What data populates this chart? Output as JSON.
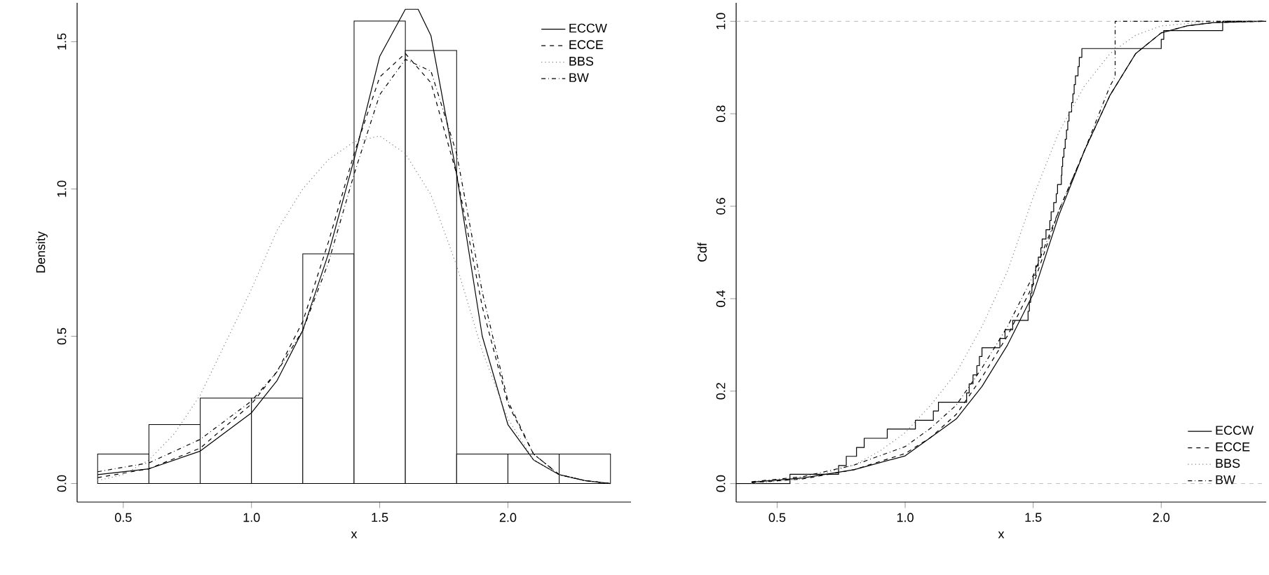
{
  "chart_data": [
    {
      "type": "histogram",
      "xlabel": "x",
      "ylabel": "Density",
      "bins": [
        0.4,
        0.6,
        0.8,
        1.0,
        1.2,
        1.4,
        1.6,
        1.8,
        2.0,
        2.2,
        2.4
      ],
      "values": [
        0.1,
        0.2,
        0.29,
        0.29,
        0.78,
        1.57,
        1.47,
        0.1,
        0.1,
        0.1
      ],
      "xlim": [
        0.32,
        2.48
      ],
      "ylim": [
        -0.063,
        1.632
      ],
      "xticks": [
        {
          "value": 0.5,
          "label": "0.5"
        },
        {
          "value": 1.0,
          "label": "1.0"
        },
        {
          "value": 1.5,
          "label": "1.5"
        },
        {
          "value": 2.0,
          "label": "2.0"
        }
      ],
      "yticks": [
        {
          "value": 0,
          "label": "0.0"
        },
        {
          "value": 0.5,
          "label": "0.5"
        },
        {
          "value": 1.0,
          "label": "1.0"
        },
        {
          "value": 1.5,
          "label": "1.5"
        }
      ],
      "legend": "top right",
      "marker": "none",
      "series": [
        {
          "name": "ECCW",
          "type": "line",
          "color": "#000000",
          "line_style": "solid",
          "x": [
            0.4,
            0.6,
            0.8,
            1.0,
            1.1,
            1.2,
            1.3,
            1.4,
            1.5,
            1.6,
            1.65,
            1.7,
            1.8,
            1.9,
            2.0,
            2.1,
            2.2,
            2.3,
            2.4
          ],
          "values": [
            0.03,
            0.05,
            0.11,
            0.24,
            0.35,
            0.52,
            0.78,
            1.1,
            1.45,
            1.61,
            1.61,
            1.52,
            1.05,
            0.5,
            0.2,
            0.08,
            0.03,
            0.01,
            0.0
          ]
        },
        {
          "name": "ECCE",
          "type": "line",
          "color": "#000000",
          "line_style": "dashed",
          "x": [
            0.4,
            0.6,
            0.8,
            1.0,
            1.1,
            1.2,
            1.3,
            1.4,
            1.5,
            1.6,
            1.7,
            1.8,
            1.9,
            2.0,
            2.1,
            2.2,
            2.3,
            2.4
          ],
          "values": [
            0.02,
            0.05,
            0.12,
            0.27,
            0.38,
            0.55,
            0.82,
            1.12,
            1.38,
            1.46,
            1.36,
            1.05,
            0.6,
            0.27,
            0.1,
            0.03,
            0.01,
            0.0
          ]
        },
        {
          "name": "BBS",
          "type": "line",
          "color": "#808080",
          "line_style": "dotted",
          "x": [
            0.4,
            0.5,
            0.6,
            0.7,
            0.8,
            0.9,
            1.0,
            1.1,
            1.2,
            1.3,
            1.4,
            1.5,
            1.6,
            1.7,
            1.8,
            1.9,
            2.0,
            2.1,
            2.2,
            2.3,
            2.4
          ],
          "values": [
            0.01,
            0.03,
            0.08,
            0.17,
            0.3,
            0.48,
            0.66,
            0.86,
            1.0,
            1.1,
            1.16,
            1.18,
            1.12,
            0.98,
            0.74,
            0.45,
            0.22,
            0.08,
            0.03,
            0.01,
            0.0
          ]
        },
        {
          "name": "BW",
          "type": "line",
          "color": "#000000",
          "line_style": "dashdot",
          "x": [
            0.4,
            0.6,
            0.8,
            1.0,
            1.1,
            1.2,
            1.3,
            1.4,
            1.5,
            1.6,
            1.7,
            1.8,
            1.9,
            2.0,
            2.1,
            2.2,
            2.3,
            2.4
          ],
          "values": [
            0.04,
            0.07,
            0.15,
            0.28,
            0.38,
            0.52,
            0.75,
            1.05,
            1.32,
            1.44,
            1.4,
            1.12,
            0.65,
            0.28,
            0.1,
            0.03,
            0.01,
            0.0
          ]
        }
      ]
    },
    {
      "type": "line",
      "xlabel": "x",
      "ylabel": "Cdf",
      "xlim": [
        0.34,
        2.41
      ],
      "ylim": [
        -0.04,
        1.04
      ],
      "xticks": [
        {
          "value": 0.5,
          "label": "0.5"
        },
        {
          "value": 1.0,
          "label": "1.0"
        },
        {
          "value": 1.5,
          "label": "1.5"
        },
        {
          "value": 2.0,
          "label": "2.0"
        }
      ],
      "yticks": [
        {
          "value": 0,
          "label": "0.0"
        },
        {
          "value": 0.2,
          "label": "0.2"
        },
        {
          "value": 0.4,
          "label": "0.4"
        },
        {
          "value": 0.6,
          "label": "0.6"
        },
        {
          "value": 0.8,
          "label": "0.8"
        },
        {
          "value": 1.0,
          "label": "1.0"
        }
      ],
      "legend": "bottom right",
      "marker": "none",
      "ref_lines": [
        {
          "axis": "y",
          "value": 0,
          "color": "#aaaaaa",
          "line_style": "dashed"
        },
        {
          "axis": "y",
          "value": 1,
          "color": "#aaaaaa",
          "line_style": "dashed"
        }
      ],
      "series": [
        {
          "type": "step",
          "color": "#000000",
          "line_style": "solid",
          "x": [
            0.34,
            0.55,
            0.74,
            0.77,
            0.81,
            0.84,
            0.93,
            1.04,
            1.11,
            1.13,
            1.24,
            1.25,
            1.265,
            1.28,
            1.29,
            1.3,
            1.37,
            1.39,
            1.42,
            1.48,
            1.485,
            1.49,
            1.495,
            1.5,
            1.51,
            1.52,
            1.53,
            1.535,
            1.55,
            1.565,
            1.57,
            1.58,
            1.59,
            1.595,
            1.61,
            1.612,
            1.615,
            1.62,
            1.625,
            1.63,
            1.635,
            1.64,
            1.65,
            1.655,
            1.66,
            1.665,
            1.675,
            1.68,
            1.69,
            2.0,
            2.01,
            2.24,
            2.41
          ],
          "values": [
            0,
            0.02,
            0.039,
            0.059,
            0.078,
            0.098,
            0.118,
            0.137,
            0.157,
            0.176,
            0.196,
            0.216,
            0.235,
            0.255,
            0.275,
            0.294,
            0.314,
            0.333,
            0.353,
            0.373,
            0.392,
            0.412,
            0.431,
            0.451,
            0.471,
            0.49,
            0.51,
            0.529,
            0.549,
            0.569,
            0.588,
            0.608,
            0.627,
            0.647,
            0.667,
            0.686,
            0.706,
            0.725,
            0.745,
            0.765,
            0.784,
            0.804,
            0.824,
            0.843,
            0.863,
            0.882,
            0.902,
            0.922,
            0.941,
            0.961,
            0.98,
            1,
            1
          ]
        },
        {
          "name": "ECCW",
          "type": "line",
          "color": "#000000",
          "line_style": "solid",
          "x": [
            0.4,
            0.6,
            0.8,
            1.0,
            1.1,
            1.2,
            1.3,
            1.4,
            1.5,
            1.6,
            1.7,
            1.8,
            1.9,
            2.0,
            2.1,
            2.2,
            2.4
          ],
          "values": [
            0.003,
            0.012,
            0.03,
            0.06,
            0.1,
            0.14,
            0.21,
            0.3,
            0.41,
            0.58,
            0.72,
            0.84,
            0.93,
            0.975,
            0.99,
            0.997,
            1.0
          ]
        },
        {
          "name": "ECCE",
          "type": "line",
          "color": "#000000",
          "line_style": "dashed",
          "x": [
            0.4,
            0.6,
            0.8,
            1.0,
            1.1,
            1.2,
            1.3,
            1.4,
            1.5,
            1.6,
            1.7,
            1.8,
            1.9,
            2.0,
            2.1,
            2.2,
            2.4
          ],
          "values": [
            0.002,
            0.01,
            0.03,
            0.065,
            0.1,
            0.15,
            0.23,
            0.32,
            0.43,
            0.59,
            0.72,
            0.84,
            0.93,
            0.975,
            0.99,
            0.997,
            1.0
          ]
        },
        {
          "name": "BBS",
          "type": "line",
          "color": "#808080",
          "line_style": "dotted",
          "x": [
            0.4,
            0.6,
            0.8,
            0.9,
            1.0,
            1.1,
            1.2,
            1.3,
            1.4,
            1.5,
            1.6,
            1.7,
            1.8,
            1.9,
            2.0,
            2.2,
            2.4
          ],
          "values": [
            0.0,
            0.01,
            0.04,
            0.07,
            0.11,
            0.17,
            0.24,
            0.34,
            0.46,
            0.62,
            0.76,
            0.86,
            0.93,
            0.97,
            0.99,
            1.0,
            1.0
          ]
        },
        {
          "name": "BW",
          "type": "line",
          "color": "#000000",
          "line_style": "dashdot",
          "x": [
            0.4,
            0.6,
            0.8,
            1.0,
            1.1,
            1.2,
            1.3,
            1.4,
            1.5,
            1.6,
            1.7,
            1.8,
            1.82,
            1.82,
            2.4
          ],
          "values": [
            0.004,
            0.015,
            0.04,
            0.08,
            0.12,
            0.17,
            0.25,
            0.34,
            0.45,
            0.59,
            0.72,
            0.86,
            0.88,
            1.0,
            1.0
          ]
        }
      ]
    }
  ]
}
